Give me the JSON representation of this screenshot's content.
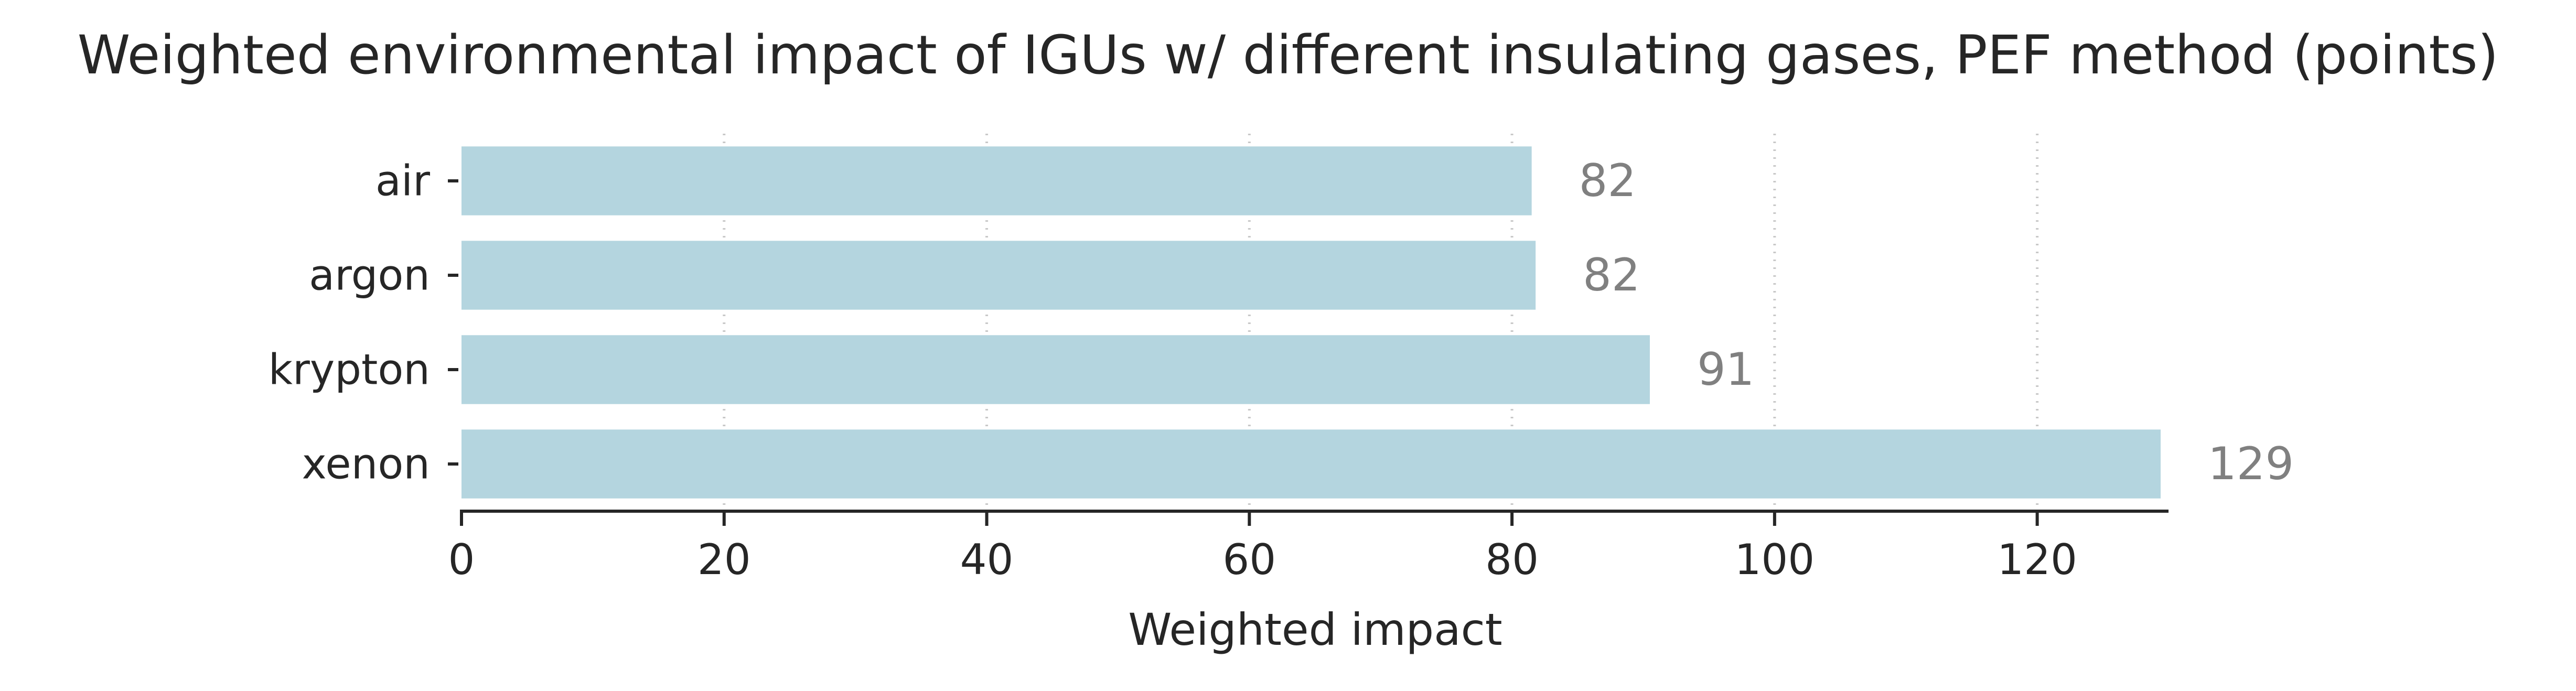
{
  "chart_data": {
    "type": "bar",
    "orientation": "horizontal",
    "title": "Weighted environmental impact of IGUs w/ different insulating gases, PEF method (points)",
    "xlabel": "Weighted impact",
    "ylabel": "",
    "categories": [
      "air",
      "argon",
      "krypton",
      "xenon"
    ],
    "values": [
      81.5,
      81.8,
      90.5,
      129.4
    ],
    "data_labels": [
      "82",
      "82",
      "91",
      "129"
    ],
    "xlim": [
      0,
      130
    ],
    "xticks": [
      0,
      20,
      40,
      60,
      80,
      100,
      120
    ],
    "xtick_labels": [
      "0",
      "20",
      "40",
      "60",
      "80",
      "100",
      "120"
    ],
    "grid": "vertical dotted",
    "legend": "none",
    "colors": {
      "bar": "#b4d5df",
      "data_label": "#808080",
      "text": "#262626",
      "axis": "#262626",
      "grid": "#c8c8c8"
    }
  }
}
